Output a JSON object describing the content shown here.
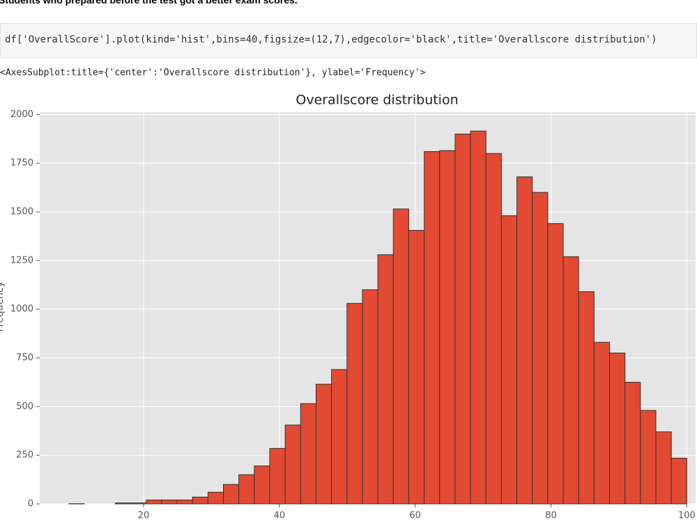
{
  "heading": "Students who prepared before the test got a better exam scores.",
  "code": "df['OverallScore'].plot(kind='hist',bins=40,figsize=(12,7),edgecolor='black',title='Overallscore distribution')",
  "output": "<AxesSubplot:title={'center':'Overallscore distribution'}, ylabel='Frequency'>",
  "chart_data": {
    "type": "histogram",
    "title": "Overallscore distribution",
    "ylabel": "Frequency",
    "bins": [
      9,
      11.275,
      13.55,
      15.825,
      18.1,
      20.375,
      22.65,
      24.925,
      27.2,
      29.475,
      31.75,
      34.025,
      36.3,
      38.575,
      40.85,
      43.125,
      45.4,
      47.675,
      49.95,
      52.225,
      54.5,
      56.775,
      59.05,
      61.325,
      63.6,
      65.875,
      68.15,
      70.425,
      72.7,
      74.975,
      77.25,
      79.525,
      81.8,
      84.075,
      86.35,
      88.625,
      90.9,
      93.175,
      95.45,
      97.725,
      100
    ],
    "values": [
      1,
      0,
      0,
      5,
      5,
      20,
      20,
      20,
      35,
      60,
      100,
      150,
      195,
      285,
      405,
      515,
      615,
      690,
      1030,
      1100,
      1280,
      1515,
      1405,
      1810,
      1815,
      1900,
      1915,
      1800,
      1480,
      1680,
      1600,
      1440,
      1270,
      1090,
      830,
      775,
      625,
      480,
      370,
      235
    ],
    "color": "#e24a33",
    "edgecolor": "#333333",
    "xlim": [
      4.7,
      101.3
    ],
    "ylim": [
      0,
      2012
    ],
    "xticks": [
      20,
      40,
      60,
      80,
      100
    ],
    "yticks": [
      0,
      250,
      500,
      750,
      1000,
      1250,
      1500,
      1750,
      2000
    ],
    "grid": true
  }
}
